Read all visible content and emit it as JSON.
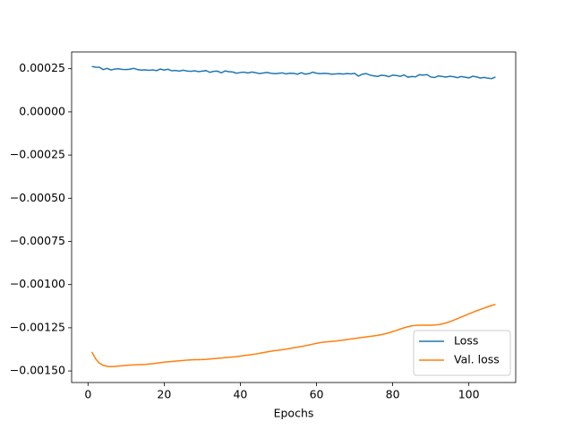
{
  "chart_data": {
    "type": "line",
    "x_label": "Epochs",
    "x": [
      1,
      2,
      3,
      4,
      5,
      6,
      7,
      8,
      9,
      10,
      11,
      12,
      13,
      14,
      15,
      16,
      17,
      18,
      19,
      20,
      21,
      22,
      23,
      24,
      25,
      26,
      27,
      28,
      29,
      30,
      31,
      32,
      33,
      34,
      35,
      36,
      37,
      38,
      39,
      40,
      41,
      42,
      43,
      44,
      45,
      46,
      47,
      48,
      49,
      50,
      51,
      52,
      53,
      54,
      55,
      56,
      57,
      58,
      59,
      60,
      61,
      62,
      63,
      64,
      65,
      66,
      67,
      68,
      69,
      70,
      71,
      72,
      73,
      74,
      75,
      76,
      77,
      78,
      79,
      80,
      81,
      82,
      83,
      84,
      85,
      86,
      87,
      88,
      89,
      90,
      91,
      92,
      93,
      94,
      95,
      96,
      97,
      98,
      99,
      100,
      101,
      102,
      103,
      104,
      105,
      106,
      107
    ],
    "series": [
      {
        "name": "Loss",
        "color": "#1f77b4",
        "values": [
          0.000263,
          0.000259,
          0.000258,
          0.000245,
          0.000252,
          0.000243,
          0.000248,
          0.00025,
          0.000246,
          0.000245,
          0.000247,
          0.000252,
          0.000245,
          0.000242,
          0.000243,
          0.000241,
          0.000243,
          0.000239,
          0.000248,
          0.000242,
          0.000247,
          0.000238,
          0.00024,
          0.000236,
          0.000241,
          0.000237,
          0.000235,
          0.000238,
          0.000233,
          0.000236,
          0.000239,
          0.000229,
          0.000235,
          0.000236,
          0.000226,
          0.000237,
          0.000233,
          0.000231,
          0.000224,
          0.000228,
          0.00023,
          0.000225,
          0.000231,
          0.000227,
          0.000222,
          0.000225,
          0.000228,
          0.000224,
          0.000221,
          0.000223,
          0.000226,
          0.00022,
          0.000224,
          0.000223,
          0.000218,
          0.000227,
          0.000219,
          0.000221,
          0.00023,
          0.000224,
          0.000221,
          0.000223,
          0.000222,
          0.000218,
          0.00022,
          0.000221,
          0.000219,
          0.000222,
          0.00022,
          0.000223,
          0.000207,
          0.000218,
          0.000222,
          0.000213,
          0.000209,
          0.000205,
          0.000212,
          0.00021,
          0.000204,
          0.000213,
          0.000211,
          0.000206,
          0.000214,
          0.000201,
          0.000205,
          0.000203,
          0.000215,
          0.000213,
          0.000216,
          0.000202,
          0.000199,
          0.000208,
          0.000205,
          0.000202,
          0.000206,
          0.000204,
          0.000198,
          0.000205,
          0.000201,
          0.000197,
          0.000206,
          0.000203,
          0.000196,
          0.0002,
          0.000195,
          0.000193,
          0.000202
        ]
      },
      {
        "name": "Val. loss",
        "color": "#ff7f0e",
        "values": [
          -0.00139,
          -0.00143,
          -0.001455,
          -0.001468,
          -0.001473,
          -0.001475,
          -0.001474,
          -0.001472,
          -0.00147,
          -0.001468,
          -0.001466,
          -0.001465,
          -0.001464,
          -0.001463,
          -0.001462,
          -0.00146,
          -0.001458,
          -0.001455,
          -0.001452,
          -0.001449,
          -0.001447,
          -0.001445,
          -0.001443,
          -0.001441,
          -0.001439,
          -0.001437,
          -0.001436,
          -0.001435,
          -0.001435,
          -0.001434,
          -0.001433,
          -0.001431,
          -0.001429,
          -0.001427,
          -0.001425,
          -0.001423,
          -0.001421,
          -0.001419,
          -0.001417,
          -0.001414,
          -0.001411,
          -0.001408,
          -0.001405,
          -0.001402,
          -0.001398,
          -0.001394,
          -0.00139,
          -0.001386,
          -0.001383,
          -0.00138,
          -0.001377,
          -0.001374,
          -0.00137,
          -0.001366,
          -0.001362,
          -0.001358,
          -0.001354,
          -0.00135,
          -0.001345,
          -0.00134,
          -0.001336,
          -0.001333,
          -0.001331,
          -0.001329,
          -0.001327,
          -0.001324,
          -0.001321,
          -0.001318,
          -0.001315,
          -0.001312,
          -0.001309,
          -0.001306,
          -0.001303,
          -0.0013,
          -0.001297,
          -0.001294,
          -0.00129,
          -0.001285,
          -0.001279,
          -0.001272,
          -0.001265,
          -0.001257,
          -0.00125,
          -0.001244,
          -0.001239,
          -0.001236,
          -0.001235,
          -0.001235,
          -0.001235,
          -0.001235,
          -0.001234,
          -0.001232,
          -0.001228,
          -0.001222,
          -0.001215,
          -0.001206,
          -0.001197,
          -0.001188,
          -0.001179,
          -0.00117,
          -0.001161,
          -0.001152,
          -0.001144,
          -0.001136,
          -0.001128,
          -0.001121,
          -0.001115
        ]
      }
    ],
    "xlim": [
      -4.3,
      112.3
    ],
    "ylim": [
      -0.001567,
      0.000347
    ],
    "xticks": [
      0,
      20,
      40,
      60,
      80,
      100
    ],
    "yticks": [
      {
        "value": 0.00025,
        "label": "0.00025"
      },
      {
        "value": 0,
        "label": "0.00000"
      },
      {
        "value": -0.00025,
        "label": "−0.00025"
      },
      {
        "value": -0.0005,
        "label": "−0.00050"
      },
      {
        "value": -0.00075,
        "label": "−0.00075"
      },
      {
        "value": -0.001,
        "label": "−0.00100"
      },
      {
        "value": -0.00125,
        "label": "−0.00125"
      },
      {
        "value": -0.0015,
        "label": "−0.00150"
      }
    ],
    "legend_position": "lower right"
  }
}
